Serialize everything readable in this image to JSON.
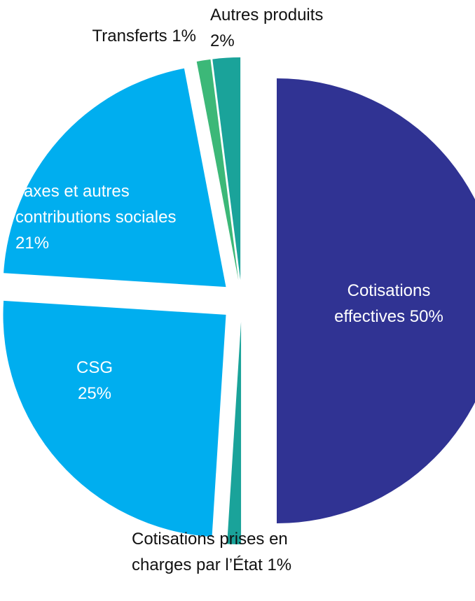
{
  "chart_data": {
    "type": "pie",
    "categories": [
      "Cotisations effectives",
      "Cotisations prises en charges par l’État",
      "CSG",
      "Taxes et autres contributions sociales",
      "Transferts",
      "Autres produits"
    ],
    "values": [
      50,
      1,
      25,
      21,
      1,
      2
    ],
    "value_labels": [
      "50%",
      "1%",
      "25%",
      "21%",
      "1%",
      "2%"
    ],
    "colors": [
      "#303393",
      "#1aa39a",
      "#00aeef",
      "#00aeef",
      "#3cb878",
      "#1aa39a"
    ]
  }
}
